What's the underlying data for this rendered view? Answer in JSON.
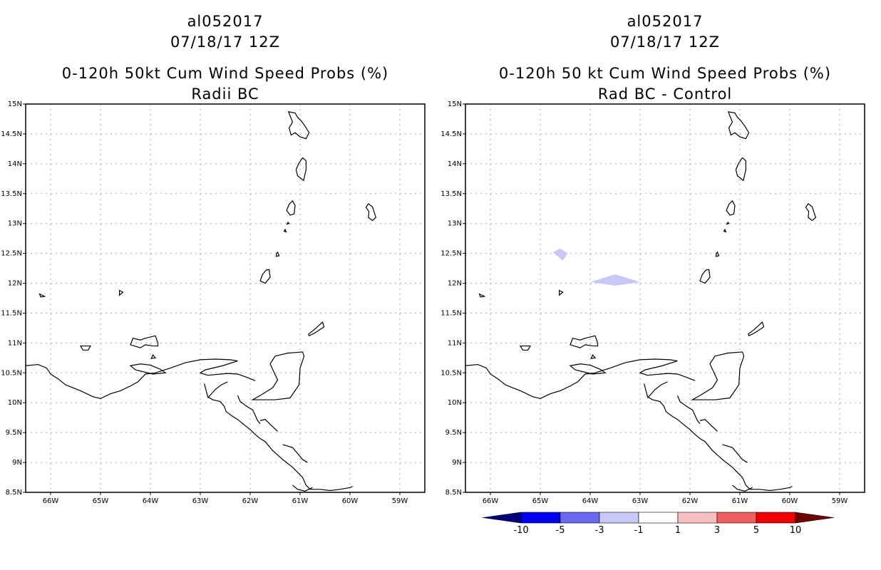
{
  "left_panel": {
    "storm_id": "al052017",
    "datetime": "07/18/17 12Z",
    "product": "0-120h 50kt Cum Wind Speed Probs (%)",
    "subtitle": "Radii BC"
  },
  "right_panel": {
    "storm_id": "al052017",
    "datetime": "07/18/17 12Z",
    "product": "0-120h 50 kt Cum Wind Speed Probs (%)",
    "subtitle": "Rad BC - Control"
  },
  "map_axes": {
    "lon_labels": [
      "66W",
      "65W",
      "64W",
      "63W",
      "62W",
      "61W",
      "60W",
      "59W"
    ],
    "lat_labels": [
      "8.5N",
      "9N",
      "9.5N",
      "10N",
      "10.5N",
      "11N",
      "11.5N",
      "12N",
      "12.5N",
      "13N",
      "13.5N",
      "14N",
      "14.5N",
      "15N"
    ],
    "lon_range": [
      -66.5,
      -58.5
    ],
    "lat_range": [
      8.5,
      15.0
    ]
  },
  "colorbar": {
    "ticks": [
      "-10",
      "-5",
      "-3",
      "-1",
      "1",
      "3",
      "5",
      "10"
    ],
    "colors": [
      "#00007a",
      "#0000f0",
      "#6a6af0",
      "#c8c8f8",
      "#ffffff",
      "#f8c0c0",
      "#f06060",
      "#f00000",
      "#700000"
    ]
  },
  "field_color": "#c8c8f8"
}
